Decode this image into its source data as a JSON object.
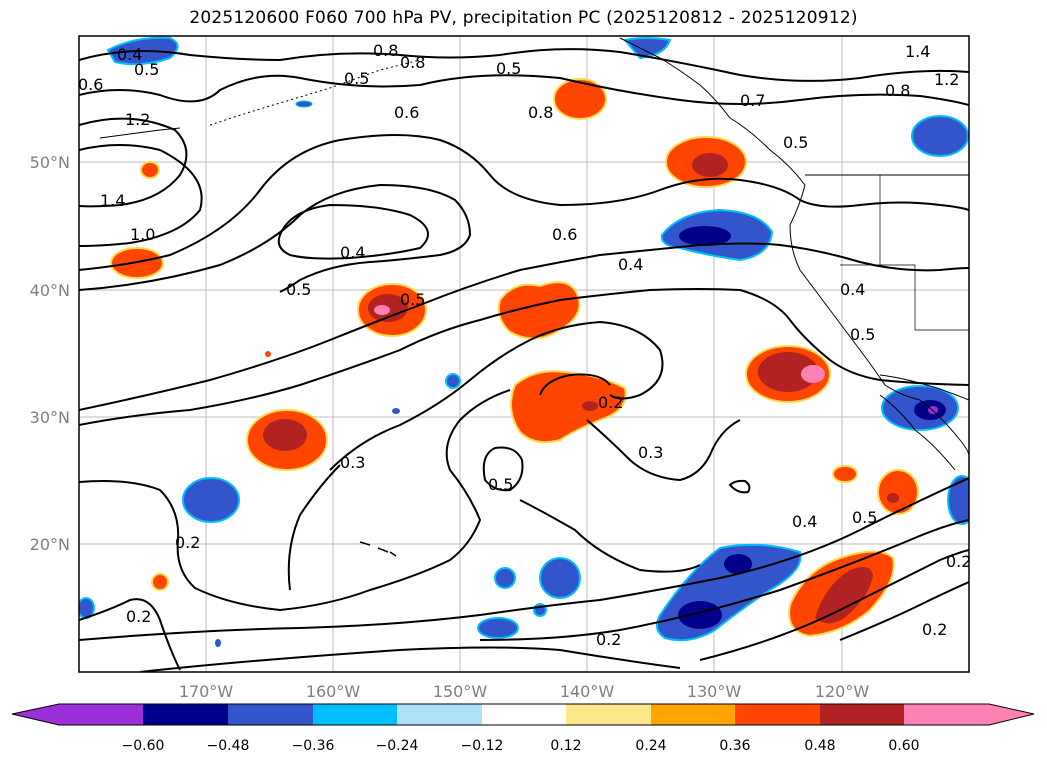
{
  "title": "2025120600 F060 700 hPa PV, precipitation PC (2025120812 - 2025120912)",
  "latitude_labels": [
    "50°N",
    "40°N",
    "30°N",
    "20°N"
  ],
  "longitude_labels": [
    "170°W",
    "160°W",
    "150°W",
    "140°W",
    "130°W",
    "120°W"
  ],
  "contour_labels": [
    "0.4",
    "0.5",
    "0.8",
    "0.8",
    "0.5",
    "0.5",
    "1.4",
    "1.2",
    "0.6",
    "1.2",
    "0.6",
    "0.8",
    "0.7",
    "0.8",
    "0.5",
    "1.4",
    "1.0",
    "0.6",
    "0.4",
    "0.4",
    "0.5",
    "0.5",
    "0.4",
    "0.5",
    "0.2",
    "0.3",
    "0.3",
    "0.5",
    "0.2",
    "0.2",
    "0.4",
    "0.5",
    "0.2",
    "0.2",
    "0.2"
  ],
  "colorbar": {
    "ticks": [
      "−0.60",
      "−0.48",
      "−0.36",
      "−0.24",
      "−0.12",
      "0.12",
      "0.24",
      "0.36",
      "0.48",
      "0.60"
    ],
    "colors": {
      "below": "#9b30d9",
      "bins": [
        "#00008b",
        "#3355cc",
        "#00bfff",
        "#aee0f8",
        "#ffffff",
        "#ffe88a",
        "#ffa500",
        "#ff4500",
        "#b22222",
        "#ff82b4"
      ],
      "above": "#ff82b4"
    }
  }
}
